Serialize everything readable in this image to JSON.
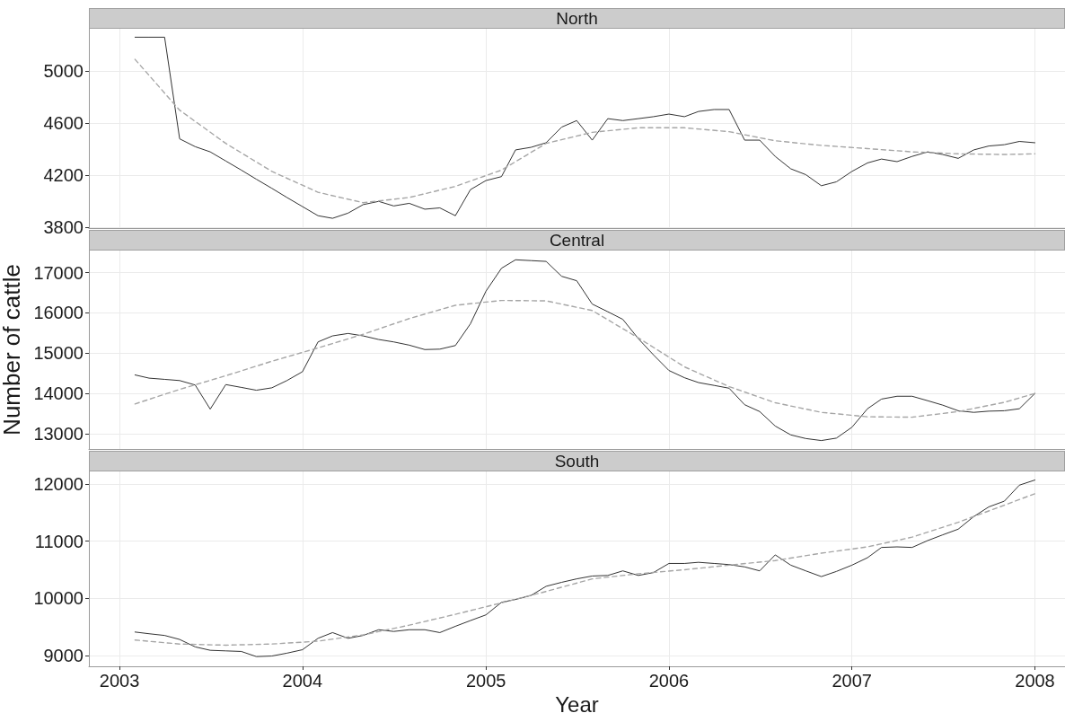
{
  "chart_data": [
    {
      "type": "line",
      "title": "North",
      "x": [
        "2003-02",
        "2003-03",
        "2003-04",
        "2003-05",
        "2003-06",
        "2003-07",
        "2003-08",
        "2003-09",
        "2003-10",
        "2003-11",
        "2003-12",
        "2004-01",
        "2004-02",
        "2004-03",
        "2004-04",
        "2004-05",
        "2004-06",
        "2004-07",
        "2004-08",
        "2004-09",
        "2004-10",
        "2004-11",
        "2004-12",
        "2005-01",
        "2005-02",
        "2005-03",
        "2005-04",
        "2005-05",
        "2005-06",
        "2005-07",
        "2005-08",
        "2005-09",
        "2005-10",
        "2005-11",
        "2005-12",
        "2006-01",
        "2006-02",
        "2006-03",
        "2006-04",
        "2006-05",
        "2006-06",
        "2006-07",
        "2006-08",
        "2006-09",
        "2006-10",
        "2006-11",
        "2006-12",
        "2007-01",
        "2007-02",
        "2007-03",
        "2007-04",
        "2007-05",
        "2007-06",
        "2007-07",
        "2007-08",
        "2007-09",
        "2007-10",
        "2007-11",
        "2007-12",
        "2008-01"
      ],
      "xlim": [
        "2002-11",
        "2008-03"
      ],
      "xticks": [
        "2003",
        "2004",
        "2005",
        "2006",
        "2007",
        "2008"
      ],
      "ylim": [
        3795,
        5325
      ],
      "yticks": [
        3800,
        4200,
        4600,
        5000
      ],
      "grid": true,
      "marker": "none",
      "tick_labels": "y",
      "series": [
        {
          "color": "#333333",
          "line_style": "solid",
          "values": [
            5260,
            5260,
            5260,
            4480,
            4420,
            4380,
            4310,
            4240,
            4170,
            4100,
            4030,
            3960,
            3890,
            3870,
            3910,
            3975,
            4000,
            3965,
            3985,
            3940,
            3950,
            3890,
            4090,
            4160,
            4190,
            4395,
            4415,
            4450,
            4570,
            4620,
            4470,
            4635,
            4620,
            4635,
            4650,
            4670,
            4650,
            4690,
            4705,
            4705,
            4470,
            4470,
            4345,
            4250,
            4205,
            4120,
            4150,
            4230,
            4295,
            4325,
            4305,
            4345,
            4380,
            4360,
            4330,
            4395,
            4425,
            4435,
            4460,
            4450
          ]
        },
        {
          "color": "#a6a6a6",
          "line_style": "dashed",
          "x": [
            "2003-02",
            "2003-05",
            "2003-08",
            "2003-11",
            "2004-02",
            "2004-05",
            "2004-08",
            "2004-11",
            "2005-02",
            "2005-05",
            "2005-08",
            "2005-11",
            "2006-02",
            "2006-05",
            "2006-08",
            "2006-11",
            "2007-02",
            "2007-05",
            "2007-08",
            "2007-11",
            "2008-01"
          ],
          "values": [
            5090,
            4700,
            4445,
            4230,
            4070,
            3990,
            4030,
            4115,
            4240,
            4445,
            4530,
            4565,
            4565,
            4535,
            4465,
            4430,
            4405,
            4380,
            4365,
            4360,
            4365
          ]
        }
      ]
    },
    {
      "type": "line",
      "title": "Central",
      "ylabel": "Number of cattle",
      "x": [
        "2003-02",
        "2003-03",
        "2003-04",
        "2003-05",
        "2003-06",
        "2003-07",
        "2003-08",
        "2003-09",
        "2003-10",
        "2003-11",
        "2003-12",
        "2004-01",
        "2004-02",
        "2004-03",
        "2004-04",
        "2004-05",
        "2004-06",
        "2004-07",
        "2004-08",
        "2004-09",
        "2004-10",
        "2004-11",
        "2004-12",
        "2005-01",
        "2005-02",
        "2005-03",
        "2005-04",
        "2005-05",
        "2005-06",
        "2005-07",
        "2005-08",
        "2005-09",
        "2005-10",
        "2005-11",
        "2005-12",
        "2006-01",
        "2006-02",
        "2006-03",
        "2006-04",
        "2006-05",
        "2006-06",
        "2006-07",
        "2006-08",
        "2006-09",
        "2006-10",
        "2006-11",
        "2006-12",
        "2007-01",
        "2007-02",
        "2007-03",
        "2007-04",
        "2007-05",
        "2007-06",
        "2007-07",
        "2007-08",
        "2007-09",
        "2007-10",
        "2007-11",
        "2007-12",
        "2008-01"
      ],
      "xlim": [
        "2002-11",
        "2008-03"
      ],
      "xticks": [
        "2003",
        "2004",
        "2005",
        "2006",
        "2007",
        "2008"
      ],
      "ylim": [
        12620,
        17550
      ],
      "yticks": [
        13000,
        14000,
        15000,
        16000,
        17000
      ],
      "grid": true,
      "marker": "none",
      "tick_labels": "y",
      "series": [
        {
          "color": "#333333",
          "line_style": "solid",
          "values": [
            14460,
            14380,
            14350,
            14320,
            14210,
            13610,
            14220,
            14150,
            14080,
            14140,
            14320,
            14540,
            15280,
            15430,
            15490,
            15430,
            15340,
            15280,
            15200,
            15090,
            15100,
            15190,
            15730,
            16540,
            17110,
            17320,
            17300,
            17280,
            16910,
            16800,
            16220,
            16030,
            15840,
            15360,
            14960,
            14570,
            14390,
            14270,
            14200,
            14130,
            13720,
            13550,
            13190,
            12970,
            12880,
            12830,
            12890,
            13160,
            13620,
            13860,
            13930,
            13930,
            13820,
            13710,
            13570,
            13530,
            13560,
            13570,
            13620,
            14000
          ]
        },
        {
          "color": "#a6a6a6",
          "line_style": "dashed",
          "x": [
            "2003-02",
            "2003-05",
            "2003-08",
            "2003-11",
            "2004-02",
            "2004-05",
            "2004-08",
            "2004-11",
            "2005-02",
            "2005-05",
            "2005-08",
            "2005-11",
            "2006-02",
            "2006-05",
            "2006-08",
            "2006-11",
            "2007-02",
            "2007-05",
            "2007-08",
            "2007-11",
            "2008-01"
          ],
          "values": [
            13740,
            14100,
            14440,
            14800,
            15130,
            15470,
            15860,
            16190,
            16310,
            16300,
            16060,
            15380,
            14660,
            14170,
            13770,
            13530,
            13420,
            13410,
            13550,
            13780,
            14000
          ]
        }
      ]
    },
    {
      "type": "line",
      "title": "South",
      "xlabel": "Year",
      "x": [
        "2003-02",
        "2003-03",
        "2003-04",
        "2003-05",
        "2003-06",
        "2003-07",
        "2003-08",
        "2003-09",
        "2003-10",
        "2003-11",
        "2003-12",
        "2004-01",
        "2004-02",
        "2004-03",
        "2004-04",
        "2004-05",
        "2004-06",
        "2004-07",
        "2004-08",
        "2004-09",
        "2004-10",
        "2004-11",
        "2004-12",
        "2005-01",
        "2005-02",
        "2005-03",
        "2005-04",
        "2005-05",
        "2005-06",
        "2005-07",
        "2005-08",
        "2005-09",
        "2005-10",
        "2005-11",
        "2005-12",
        "2006-01",
        "2006-02",
        "2006-03",
        "2006-04",
        "2006-05",
        "2006-06",
        "2006-07",
        "2006-08",
        "2006-09",
        "2006-10",
        "2006-11",
        "2006-12",
        "2007-01",
        "2007-02",
        "2007-03",
        "2007-04",
        "2007-05",
        "2007-06",
        "2007-07",
        "2007-08",
        "2007-09",
        "2007-10",
        "2007-11",
        "2007-12",
        "2008-01"
      ],
      "xlim": [
        "2002-11",
        "2008-03"
      ],
      "xticks": [
        "2003",
        "2004",
        "2005",
        "2006",
        "2007",
        "2008"
      ],
      "ylim": [
        8810,
        12220
      ],
      "yticks": [
        9000,
        10000,
        11000,
        12000
      ],
      "grid": true,
      "marker": "none",
      "series": [
        {
          "color": "#333333",
          "line_style": "solid",
          "values": [
            9410,
            9380,
            9350,
            9280,
            9150,
            9090,
            9080,
            9070,
            8980,
            8990,
            9040,
            9100,
            9300,
            9400,
            9300,
            9350,
            9450,
            9420,
            9450,
            9450,
            9400,
            9510,
            9610,
            9710,
            9930,
            9980,
            10050,
            10210,
            10280,
            10340,
            10390,
            10400,
            10480,
            10400,
            10450,
            10610,
            10610,
            10630,
            10610,
            10590,
            10550,
            10480,
            10760,
            10580,
            10480,
            10380,
            10470,
            10580,
            10710,
            10890,
            10900,
            10890,
            11010,
            11110,
            11210,
            11430,
            11600,
            11700,
            11980,
            12070
          ]
        },
        {
          "color": "#a6a6a6",
          "line_style": "dashed",
          "x": [
            "2003-02",
            "2003-05",
            "2003-08",
            "2003-11",
            "2004-02",
            "2004-05",
            "2004-08",
            "2004-11",
            "2005-02",
            "2005-05",
            "2005-08",
            "2005-11",
            "2006-02",
            "2006-05",
            "2006-08",
            "2006-11",
            "2007-02",
            "2007-05",
            "2007-08",
            "2007-11",
            "2008-01"
          ],
          "values": [
            9270,
            9200,
            9180,
            9200,
            9250,
            9360,
            9530,
            9720,
            9920,
            10120,
            10340,
            10430,
            10500,
            10580,
            10660,
            10790,
            10900,
            11070,
            11330,
            11630,
            11830
          ]
        }
      ]
    }
  ]
}
